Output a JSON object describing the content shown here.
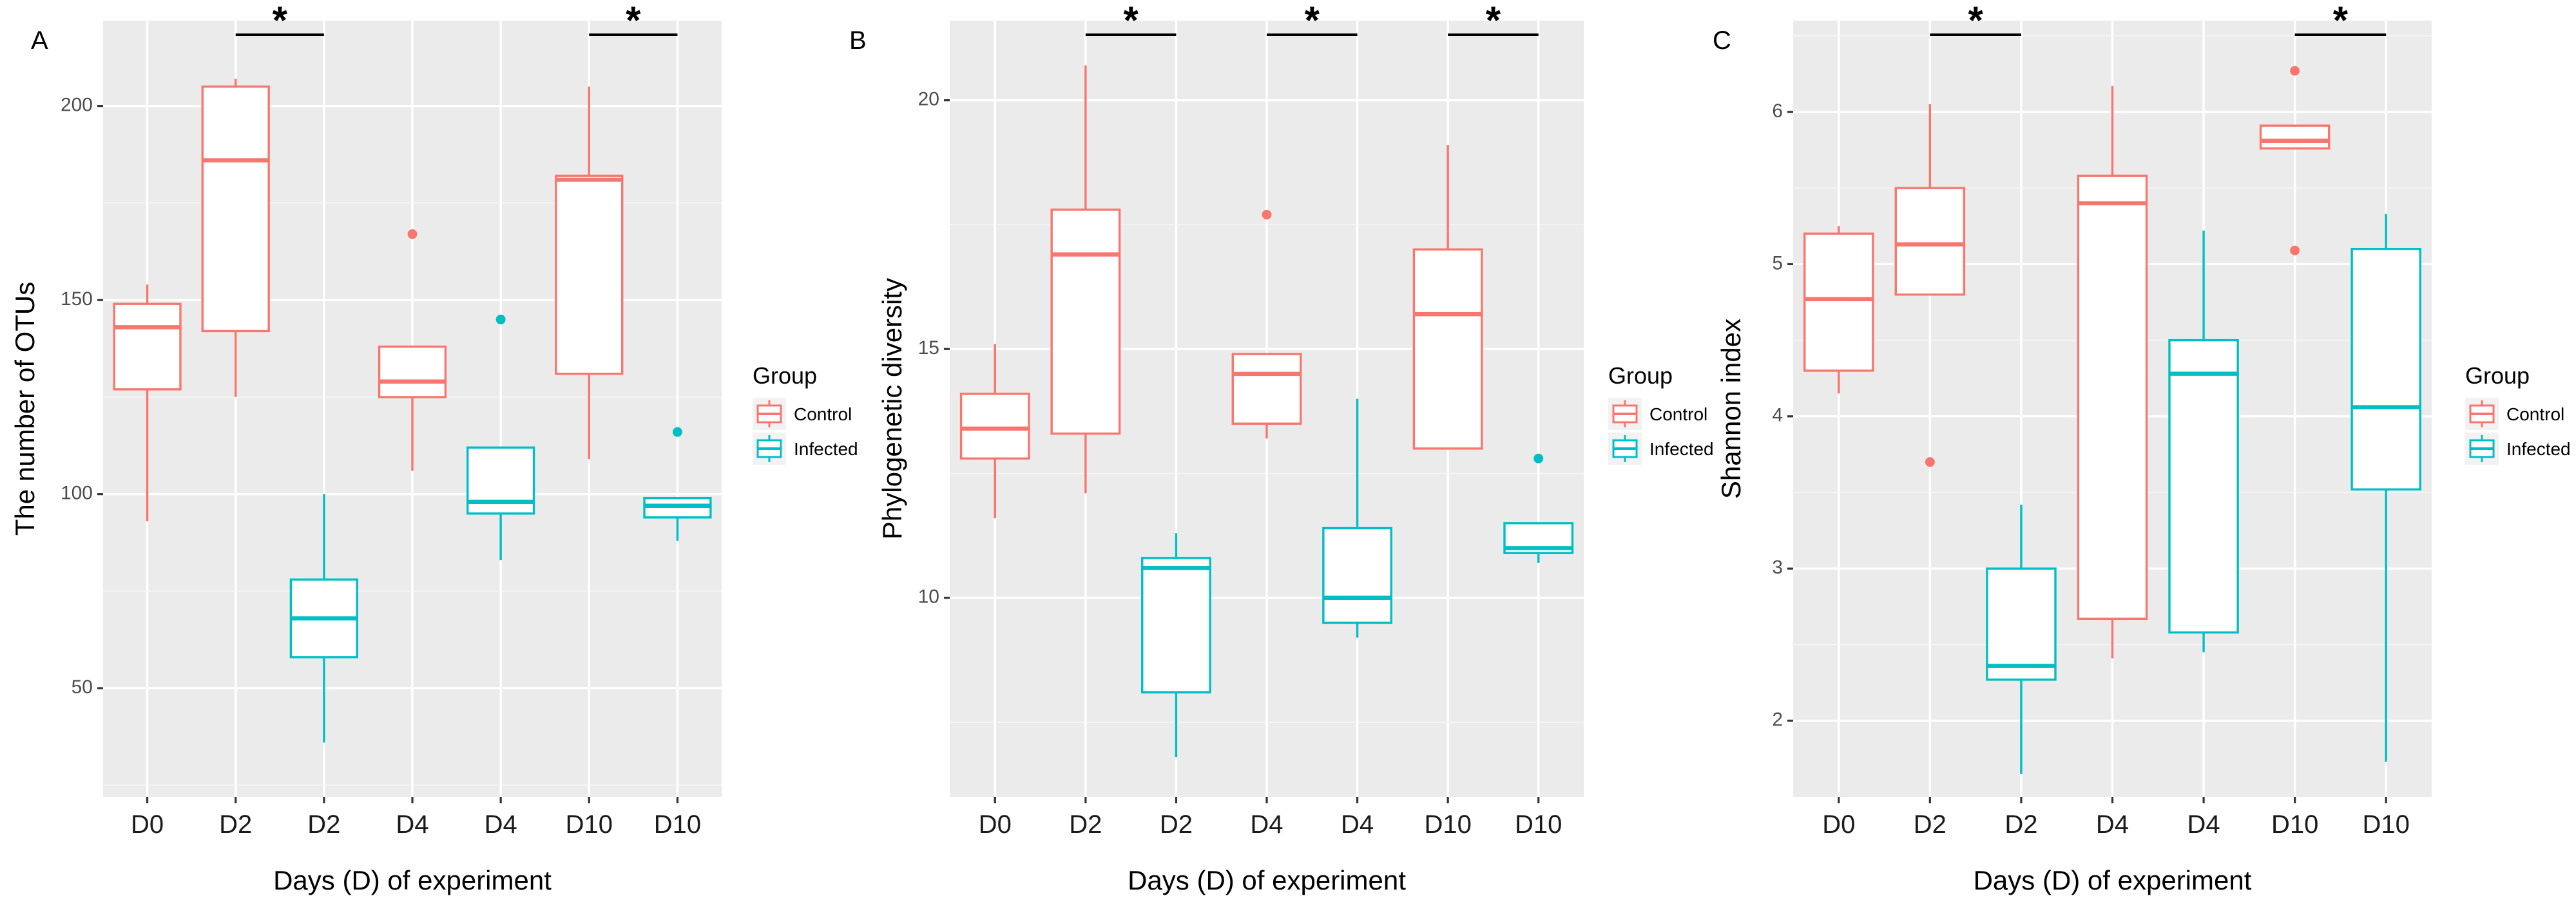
{
  "chart_data": [
    {
      "type": "boxplot",
      "panel": "A",
      "xlabel": "Days (D) of experiment",
      "ylabel": "The number of OTUs",
      "ylim": [
        22,
        222
      ],
      "yticks": [
        50,
        100,
        150,
        200
      ],
      "ytick_labels": [
        "50",
        "100",
        "150",
        "200"
      ],
      "categories": [
        "D0",
        "D2",
        "D2",
        "D4",
        "D4",
        "D10",
        "D10"
      ],
      "legend": {
        "title": "Group",
        "entries": [
          "Control",
          "Infected"
        ]
      },
      "colors": {
        "Control": "#f8766d",
        "Infected": "#00bfc4"
      },
      "boxes": [
        {
          "category": "D0",
          "group": "Control",
          "min": 93,
          "q1": 127,
          "median": 143,
          "q3": 149,
          "max": 154,
          "outliers": []
        },
        {
          "category": "D2",
          "group": "Control",
          "min": 125,
          "q1": 142,
          "median": 186,
          "q3": 205,
          "max": 207,
          "outliers": []
        },
        {
          "category": "D2",
          "group": "Infected",
          "min": 36,
          "q1": 58,
          "median": 68,
          "q3": 78,
          "max": 100,
          "outliers": []
        },
        {
          "category": "D4",
          "group": "Control",
          "min": 106,
          "q1": 125,
          "median": 129,
          "q3": 138,
          "max": 138,
          "outliers": [
            167
          ]
        },
        {
          "category": "D4",
          "group": "Infected",
          "min": 83,
          "q1": 95,
          "median": 98,
          "q3": 112,
          "max": 112,
          "outliers": [
            145
          ]
        },
        {
          "category": "D10",
          "group": "Control",
          "min": 109,
          "q1": 131,
          "median": 181,
          "q3": 182,
          "max": 205,
          "outliers": []
        },
        {
          "category": "D10",
          "group": "Infected",
          "min": 88,
          "q1": 94,
          "median": 97,
          "q3": 99,
          "max": 99,
          "outliers": [
            116
          ]
        }
      ],
      "significance": [
        {
          "from": 2,
          "to": 3,
          "label": "*"
        },
        {
          "from": 6,
          "to": 7,
          "label": "*"
        }
      ]
    },
    {
      "type": "boxplot",
      "panel": "B",
      "xlabel": "Days (D) of experiment",
      "ylabel": "Phylogenetic diversity",
      "ylim": [
        6.0,
        21.6
      ],
      "yticks": [
        10,
        15,
        20
      ],
      "ytick_labels": [
        "10",
        "15",
        "20"
      ],
      "categories": [
        "D0",
        "D2",
        "D2",
        "D4",
        "D4",
        "D10",
        "D10"
      ],
      "legend": {
        "title": "Group",
        "entries": [
          "Control",
          "Infected"
        ]
      },
      "colors": {
        "Control": "#f8766d",
        "Infected": "#00bfc4"
      },
      "boxes": [
        {
          "category": "D0",
          "group": "Control",
          "min": 11.6,
          "q1": 12.8,
          "median": 13.4,
          "q3": 14.1,
          "max": 15.1,
          "outliers": []
        },
        {
          "category": "D2",
          "group": "Control",
          "min": 12.1,
          "q1": 13.3,
          "median": 16.9,
          "q3": 17.8,
          "max": 20.7,
          "outliers": []
        },
        {
          "category": "D2",
          "group": "Infected",
          "min": 6.8,
          "q1": 8.1,
          "median": 10.6,
          "q3": 10.8,
          "max": 11.3,
          "outliers": []
        },
        {
          "category": "D4",
          "group": "Control",
          "min": 13.2,
          "q1": 13.5,
          "median": 14.5,
          "q3": 14.9,
          "max": 14.9,
          "outliers": [
            17.7
          ]
        },
        {
          "category": "D4",
          "group": "Infected",
          "min": 9.2,
          "q1": 9.5,
          "median": 10.0,
          "q3": 11.4,
          "max": 14.0,
          "outliers": []
        },
        {
          "category": "D10",
          "group": "Control",
          "min": 13.0,
          "q1": 13.0,
          "median": 15.7,
          "q3": 17.0,
          "max": 19.1,
          "outliers": []
        },
        {
          "category": "D10",
          "group": "Infected",
          "min": 10.7,
          "q1": 10.9,
          "median": 11.0,
          "q3": 11.5,
          "max": 11.5,
          "outliers": [
            12.8
          ]
        }
      ],
      "significance": [
        {
          "from": 2,
          "to": 3,
          "label": "*"
        },
        {
          "from": 4,
          "to": 5,
          "label": "*"
        },
        {
          "from": 6,
          "to": 7,
          "label": "*"
        }
      ]
    },
    {
      "type": "boxplot",
      "panel": "C",
      "xlabel": "Days (D) of experiment",
      "ylabel": "Shannon index",
      "ylim": [
        1.5,
        6.6
      ],
      "yticks": [
        2,
        3,
        4,
        5,
        6
      ],
      "ytick_labels": [
        "2",
        "3",
        "4",
        "5",
        "6"
      ],
      "categories": [
        "D0",
        "D2",
        "D2",
        "D4",
        "D4",
        "D10",
        "D10"
      ],
      "legend": {
        "title": "Group",
        "entries": [
          "Control",
          "Infected"
        ]
      },
      "colors": {
        "Control": "#f8766d",
        "Infected": "#00bfc4"
      },
      "boxes": [
        {
          "category": "D0",
          "group": "Control",
          "min": 4.15,
          "q1": 4.3,
          "median": 4.77,
          "q3": 5.2,
          "max": 5.25,
          "outliers": []
        },
        {
          "category": "D2",
          "group": "Control",
          "min": 4.8,
          "q1": 4.8,
          "median": 5.13,
          "q3": 5.5,
          "max": 6.05,
          "outliers": [
            3.7
          ]
        },
        {
          "category": "D2",
          "group": "Infected",
          "min": 1.65,
          "q1": 2.27,
          "median": 2.36,
          "q3": 3.0,
          "max": 3.42,
          "outliers": []
        },
        {
          "category": "D4",
          "group": "Control",
          "min": 2.41,
          "q1": 2.67,
          "median": 5.4,
          "q3": 5.58,
          "max": 6.17,
          "outliers": []
        },
        {
          "category": "D4",
          "group": "Infected",
          "min": 2.45,
          "q1": 2.58,
          "median": 4.28,
          "q3": 4.5,
          "max": 5.22,
          "outliers": []
        },
        {
          "category": "D10",
          "group": "Control",
          "min": 5.76,
          "q1": 5.76,
          "median": 5.81,
          "q3": 5.91,
          "max": 5.91,
          "outliers": [
            6.27,
            5.09
          ]
        },
        {
          "category": "D10",
          "group": "Infected",
          "min": 1.73,
          "q1": 3.52,
          "median": 4.06,
          "q3": 5.1,
          "max": 5.33,
          "outliers": []
        }
      ],
      "significance": [
        {
          "from": 2,
          "to": 3,
          "label": "*"
        },
        {
          "from": 6,
          "to": 7,
          "label": "*"
        }
      ]
    }
  ]
}
